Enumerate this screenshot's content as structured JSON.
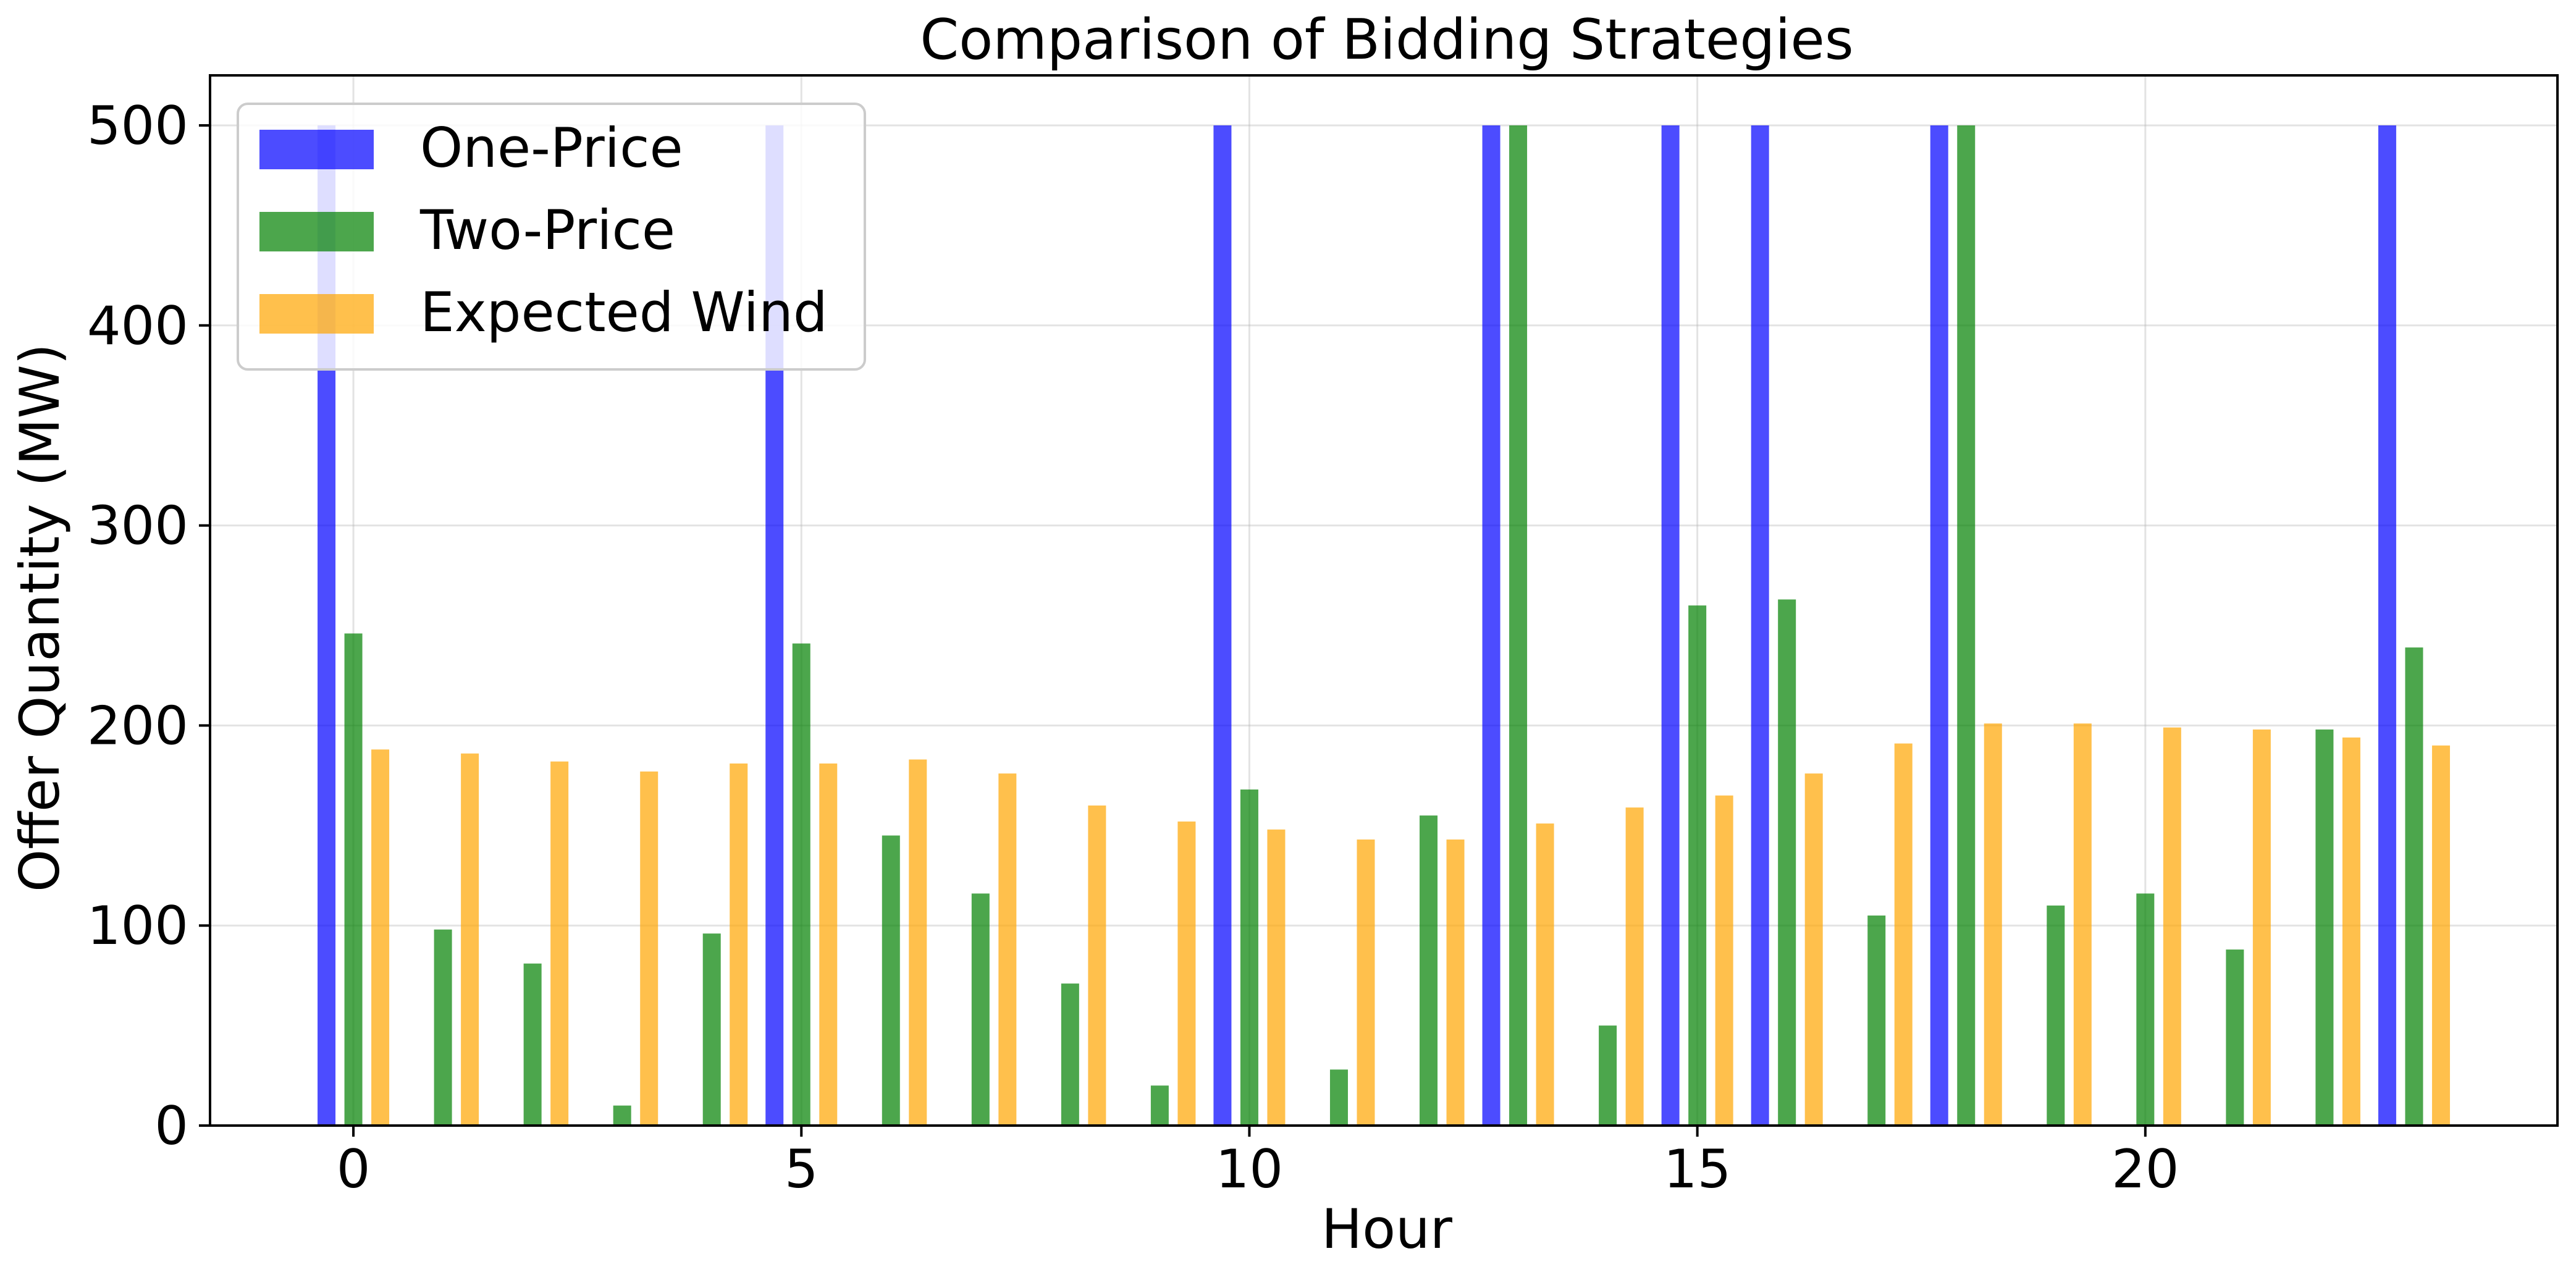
{
  "chart_data": {
    "type": "bar",
    "title": "Comparison of Bidding Strategies",
    "xlabel": "Hour",
    "ylabel": "Offer Quantity (MW)",
    "xlim": [
      -1.6,
      24.6
    ],
    "ylim": [
      0,
      525
    ],
    "xticks": [
      0,
      5,
      10,
      15,
      20
    ],
    "yticks": [
      0,
      100,
      200,
      300,
      400,
      500
    ],
    "grid": true,
    "legend_position": "top-left",
    "x": [
      0,
      1,
      2,
      3,
      4,
      5,
      6,
      7,
      8,
      9,
      10,
      11,
      12,
      13,
      14,
      15,
      16,
      17,
      18,
      19,
      20,
      21,
      22,
      23
    ],
    "series": [
      {
        "name": "One-Price",
        "color": "#0000ff",
        "offset": -0.3,
        "values": [
          500,
          0,
          0,
          0,
          0,
          500,
          0,
          0,
          0,
          0,
          500,
          0,
          0,
          500,
          0,
          500,
          500,
          0,
          500,
          0,
          0,
          0,
          0,
          500
        ]
      },
      {
        "name": "Two-Price",
        "color": "#008000",
        "offset": 0,
        "values": [
          246,
          98,
          81,
          10,
          96,
          241,
          145,
          116,
          71,
          20,
          168,
          28,
          155,
          500,
          50,
          260,
          263,
          105,
          500,
          110,
          116,
          88,
          198,
          239
        ]
      },
      {
        "name": "Expected Wind",
        "color": "#ffa500",
        "offset": 0.3,
        "values": [
          188,
          186,
          182,
          177,
          181,
          181,
          183,
          176,
          160,
          152,
          148,
          143,
          143,
          151,
          159,
          165,
          176,
          191,
          201,
          201,
          199,
          198,
          194,
          190
        ]
      }
    ]
  }
}
